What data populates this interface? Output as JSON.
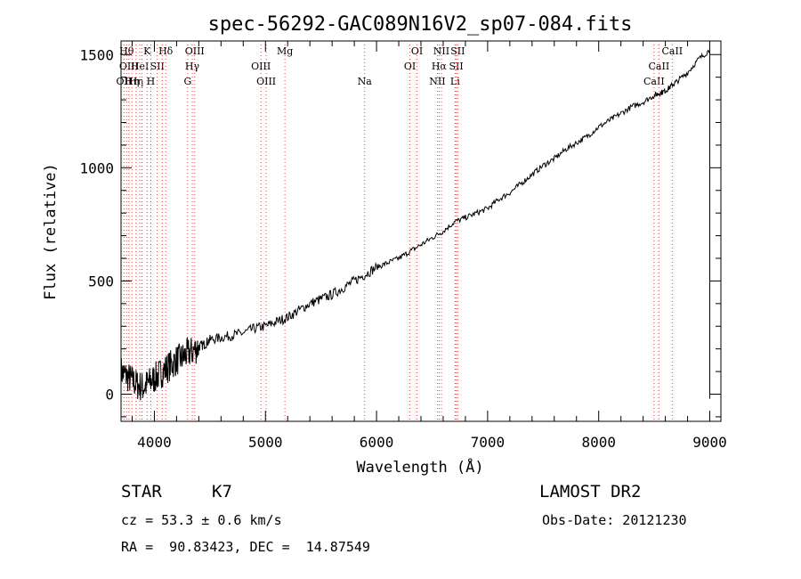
{
  "chart_data": {
    "type": "line",
    "title": "spec-56292-GAC089N16V2_sp07-084.fits",
    "xlabel": "Wavelength (Å)",
    "ylabel": "Flux (relative)",
    "xlim": [
      3700,
      9100
    ],
    "ylim": [
      -120,
      1560
    ],
    "xticks": [
      4000,
      5000,
      6000,
      7000,
      8000,
      9000
    ],
    "xtick_labels": [
      "4000",
      "5000",
      "6000",
      "7000",
      "8000",
      "9000"
    ],
    "yticks": [
      0,
      500,
      1000,
      1500
    ],
    "ytick_labels": [
      "0",
      "500",
      "1000",
      "1500"
    ],
    "grid": false,
    "series": [
      {
        "x": [
          3700,
          3750,
          3800,
          3850,
          3900,
          3950,
          4000,
          4050,
          4100,
          4150,
          4200,
          4250,
          4300,
          4350,
          4400,
          4450,
          4500,
          4600,
          4700,
          4800,
          4900,
          5000,
          5100,
          5200,
          5300,
          5400,
          5500,
          5600,
          5700,
          5800,
          5900,
          6000,
          6100,
          6200,
          6300,
          6400,
          6500,
          6600,
          6700,
          6800,
          6900,
          7000,
          7100,
          7200,
          7300,
          7400,
          7500,
          7600,
          7700,
          7800,
          7900,
          8000,
          8100,
          8200,
          8300,
          8400,
          8500,
          8550,
          8600,
          8650,
          8700,
          8800,
          8900,
          9000
        ],
        "y": [
          100,
          80,
          60,
          40,
          30,
          50,
          70,
          90,
          110,
          130,
          150,
          160,
          180,
          190,
          210,
          220,
          240,
          250,
          260,
          270,
          290,
          300,
          320,
          340,
          370,
          400,
          420,
          440,
          470,
          500,
          530,
          560,
          580,
          600,
          630,
          660,
          690,
          720,
          760,
          780,
          800,
          820,
          860,
          890,
          930,
          970,
          1010,
          1040,
          1080,
          1110,
          1140,
          1180,
          1210,
          1240,
          1270,
          1290,
          1320,
          1330,
          1340,
          1360,
          1380,
          1420,
          1480,
          1520
        ]
      }
    ],
    "line_markers": [
      {
        "wl": 3727,
        "label": "OII",
        "row": 2
      },
      {
        "wl": 3750,
        "label": "Hθ",
        "row": 0
      },
      {
        "wl": 3771,
        "label": "OIII",
        "row": 1
      },
      {
        "wl": 3798,
        "label": "Hη",
        "row": 2
      },
      {
        "wl": 3835,
        "label": "Hη",
        "row": 2
      },
      {
        "wl": 3869,
        "label": "HeI",
        "row": 1
      },
      {
        "wl": 3889,
        "label": "",
        "row": 1
      },
      {
        "wl": 3934,
        "label": "K",
        "row": 0
      },
      {
        "wl": 3968,
        "label": "H",
        "row": 2
      },
      {
        "wl": 4026,
        "label": "SII",
        "row": 1
      },
      {
        "wl": 4071,
        "label": "",
        "row": 1
      },
      {
        "wl": 4102,
        "label": "Hδ",
        "row": 0
      },
      {
        "wl": 4300,
        "label": "G",
        "row": 2
      },
      {
        "wl": 4341,
        "label": "Hγ",
        "row": 1
      },
      {
        "wl": 4363,
        "label": "OIII",
        "row": 0
      },
      {
        "wl": 4959,
        "label": "OIII",
        "row": 1
      },
      {
        "wl": 5007,
        "label": "OIII",
        "row": 2
      },
      {
        "wl": 5175,
        "label": "Mg",
        "row": 0
      },
      {
        "wl": 5893,
        "label": "Na",
        "row": 2
      },
      {
        "wl": 6300,
        "label": "OI",
        "row": 1
      },
      {
        "wl": 6364,
        "label": "OI",
        "row": 0
      },
      {
        "wl": 6548,
        "label": "NII",
        "row": 2
      },
      {
        "wl": 6563,
        "label": "Hα",
        "row": 1
      },
      {
        "wl": 6584,
        "label": "NII",
        "row": 0
      },
      {
        "wl": 6707,
        "label": "Li",
        "row": 2
      },
      {
        "wl": 6717,
        "label": "SII",
        "row": 1
      },
      {
        "wl": 6731,
        "label": "SII",
        "row": 0
      },
      {
        "wl": 8498,
        "label": "CaII",
        "row": 2
      },
      {
        "wl": 8542,
        "label": "CaII",
        "row": 1
      },
      {
        "wl": 8662,
        "label": "CaII",
        "row": 0
      }
    ]
  },
  "info": {
    "object_class": "STAR",
    "subclass": "K7",
    "survey": "LAMOST DR2",
    "redshift": "cz = 53.3 ± 0.6 km/s",
    "obs_date": "Obs-Date: 20121230",
    "coords": "RA =  90.83423, DEC =  14.87549"
  }
}
